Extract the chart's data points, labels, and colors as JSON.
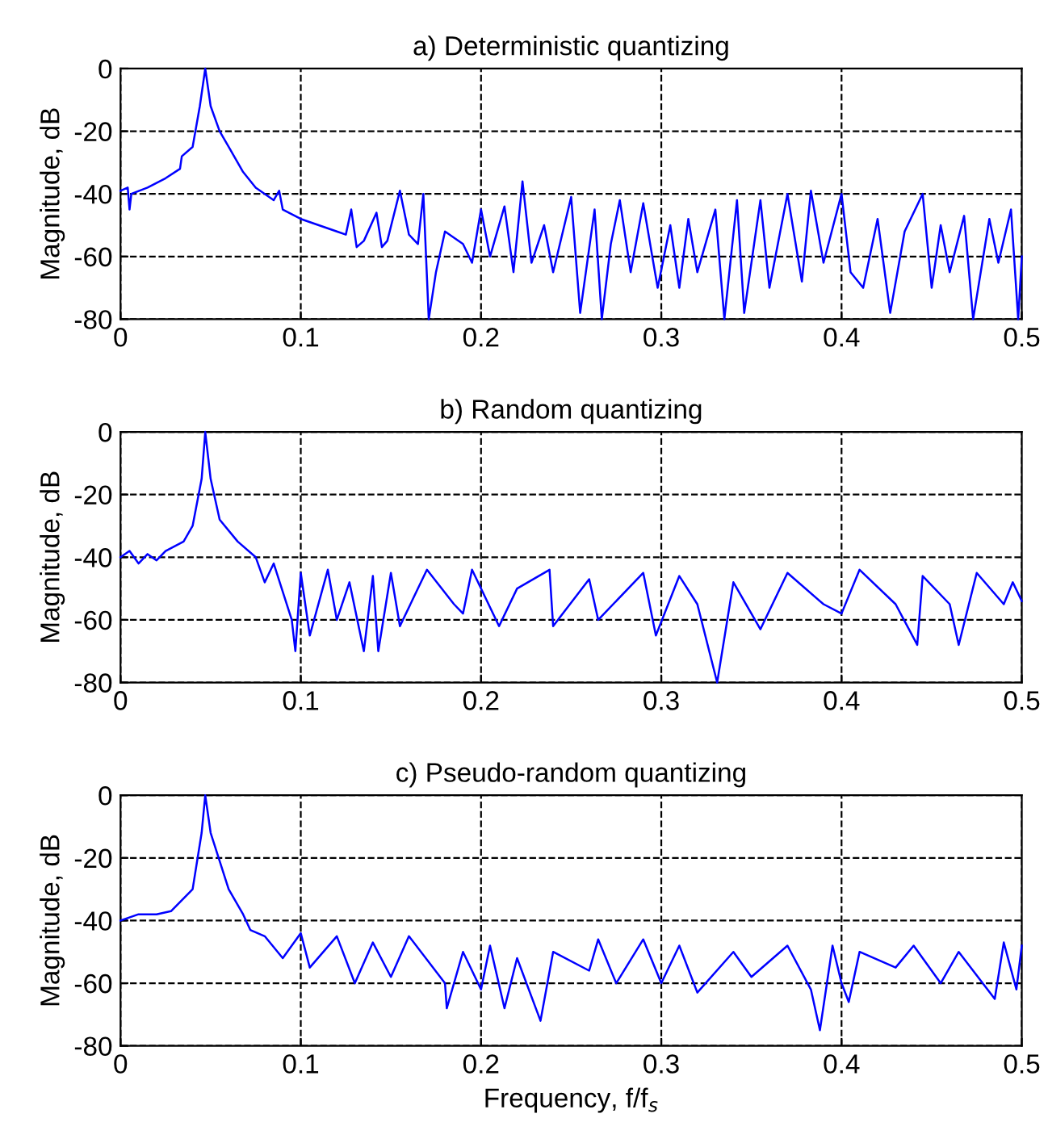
{
  "chart_data": [
    {
      "type": "line",
      "title": "a) Deterministic quantizing",
      "ylabel": "Magnitude, dB",
      "xlim": [
        0,
        0.5
      ],
      "ylim": [
        -80,
        0
      ],
      "xticks": [
        0,
        0.1,
        0.2,
        0.3,
        0.4,
        0.5
      ],
      "yticks": [
        -80,
        -60,
        -40,
        -20,
        0
      ],
      "grid": true,
      "line_style": "solid",
      "series": [
        {
          "color": "#0000ff",
          "x": [
            0,
            0.004,
            0.005,
            0.006,
            0.015,
            0.025,
            0.033,
            0.034,
            0.04,
            0.044,
            0.047,
            0.05,
            0.055,
            0.06,
            0.068,
            0.075,
            0.085,
            0.088,
            0.09,
            0.1,
            0.11,
            0.12,
            0.125,
            0.128,
            0.131,
            0.135,
            0.142,
            0.145,
            0.148,
            0.155,
            0.16,
            0.165,
            0.168,
            0.171,
            0.175,
            0.18,
            0.19,
            0.195,
            0.2,
            0.205,
            0.213,
            0.218,
            0.223,
            0.228,
            0.235,
            0.24,
            0.25,
            0.255,
            0.263,
            0.267,
            0.272,
            0.277,
            0.283,
            0.29,
            0.295,
            0.298,
            0.305,
            0.31,
            0.315,
            0.32,
            0.33,
            0.335,
            0.342,
            0.346,
            0.355,
            0.36,
            0.37,
            0.378,
            0.383,
            0.39,
            0.4,
            0.405,
            0.412,
            0.42,
            0.427,
            0.435,
            0.445,
            0.45,
            0.455,
            0.46,
            0.468,
            0.473,
            0.482,
            0.487,
            0.494,
            0.498,
            0.5
          ],
          "values": [
            -39,
            -38,
            -45,
            -40,
            -38,
            -35,
            -32,
            -28,
            -25,
            -12,
            0,
            -12,
            -20,
            -25,
            -33,
            -38,
            -42,
            -39,
            -45,
            -48,
            -50,
            -52,
            -53,
            -45,
            -57,
            -55,
            -46,
            -57,
            -55,
            -39,
            -53,
            -56,
            -40,
            -80,
            -65,
            -52,
            -56,
            -62,
            -45,
            -60,
            -44,
            -65,
            -36,
            -62,
            -50,
            -65,
            -41,
            -78,
            -45,
            -80,
            -56,
            -42,
            -65,
            -43,
            -60,
            -70,
            -50,
            -70,
            -48,
            -65,
            -45,
            -80,
            -42,
            -78,
            -42,
            -70,
            -40,
            -68,
            -39,
            -62,
            -40,
            -65,
            -70,
            -48,
            -78,
            -52,
            -40,
            -70,
            -50,
            -65,
            -47,
            -80,
            -48,
            -62,
            -45,
            -80,
            -60
          ]
        }
      ]
    },
    {
      "type": "line",
      "title": "b) Random quantizing",
      "ylabel": "Magnitude, dB",
      "xlim": [
        0,
        0.5
      ],
      "ylim": [
        -80,
        0
      ],
      "xticks": [
        0,
        0.1,
        0.2,
        0.3,
        0.4,
        0.5
      ],
      "yticks": [
        -80,
        -60,
        -40,
        -20,
        0
      ],
      "grid": true,
      "line_style": "solid",
      "series": [
        {
          "color": "#0000ff",
          "x": [
            0,
            0.005,
            0.01,
            0.015,
            0.02,
            0.025,
            0.035,
            0.04,
            0.045,
            0.047,
            0.05,
            0.055,
            0.065,
            0.075,
            0.08,
            0.085,
            0.095,
            0.097,
            0.1,
            0.105,
            0.115,
            0.12,
            0.127,
            0.135,
            0.14,
            0.143,
            0.15,
            0.155,
            0.17,
            0.185,
            0.19,
            0.195,
            0.21,
            0.22,
            0.238,
            0.24,
            0.26,
            0.265,
            0.29,
            0.297,
            0.31,
            0.32,
            0.331,
            0.34,
            0.355,
            0.37,
            0.39,
            0.4,
            0.41,
            0.43,
            0.442,
            0.445,
            0.46,
            0.465,
            0.475,
            0.49,
            0.495,
            0.5
          ],
          "values": [
            -40,
            -38,
            -42,
            -39,
            -41,
            -38,
            -35,
            -30,
            -15,
            0,
            -15,
            -28,
            -35,
            -40,
            -48,
            -42,
            -60,
            -70,
            -45,
            -65,
            -44,
            -60,
            -48,
            -70,
            -46,
            -70,
            -45,
            -62,
            -44,
            -55,
            -58,
            -44,
            -62,
            -50,
            -44,
            -62,
            -47,
            -60,
            -45,
            -65,
            -46,
            -55,
            -80,
            -48,
            -63,
            -45,
            -55,
            -58,
            -44,
            -55,
            -68,
            -46,
            -55,
            -68,
            -45,
            -55,
            -48,
            -54
          ]
        }
      ]
    },
    {
      "type": "line",
      "title": "c) Pseudo-random quantizing",
      "xlabel": "Frequency, f/f$_{s}$",
      "ylabel": "Magnitude, dB",
      "xlim": [
        0,
        0.5
      ],
      "ylim": [
        -80,
        0
      ],
      "xticks": [
        0,
        0.1,
        0.2,
        0.3,
        0.4,
        0.5
      ],
      "yticks": [
        -80,
        -60,
        -40,
        -20,
        0
      ],
      "grid": true,
      "line_style": "solid",
      "series": [
        {
          "color": "#0000ff",
          "x": [
            0,
            0.01,
            0.02,
            0.028,
            0.04,
            0.045,
            0.047,
            0.05,
            0.06,
            0.068,
            0.072,
            0.08,
            0.09,
            0.1,
            0.105,
            0.12,
            0.13,
            0.14,
            0.15,
            0.16,
            0.18,
            0.181,
            0.19,
            0.2,
            0.205,
            0.213,
            0.22,
            0.233,
            0.24,
            0.26,
            0.265,
            0.275,
            0.29,
            0.3,
            0.31,
            0.32,
            0.34,
            0.35,
            0.37,
            0.383,
            0.388,
            0.395,
            0.4,
            0.404,
            0.41,
            0.43,
            0.44,
            0.455,
            0.465,
            0.485,
            0.49,
            0.497,
            0.5
          ],
          "values": [
            -40,
            -38,
            -38,
            -37,
            -30,
            -12,
            0,
            -12,
            -30,
            -38,
            -43,
            -45,
            -52,
            -44,
            -55,
            -45,
            -60,
            -47,
            -58,
            -45,
            -60,
            -68,
            -50,
            -62,
            -48,
            -68,
            -52,
            -72,
            -50,
            -56,
            -46,
            -60,
            -46,
            -60,
            -48,
            -63,
            -50,
            -58,
            -48,
            -62,
            -75,
            -48,
            -60,
            -66,
            -50,
            -55,
            -48,
            -60,
            -50,
            -65,
            -47,
            -62,
            -48
          ]
        }
      ]
    }
  ]
}
